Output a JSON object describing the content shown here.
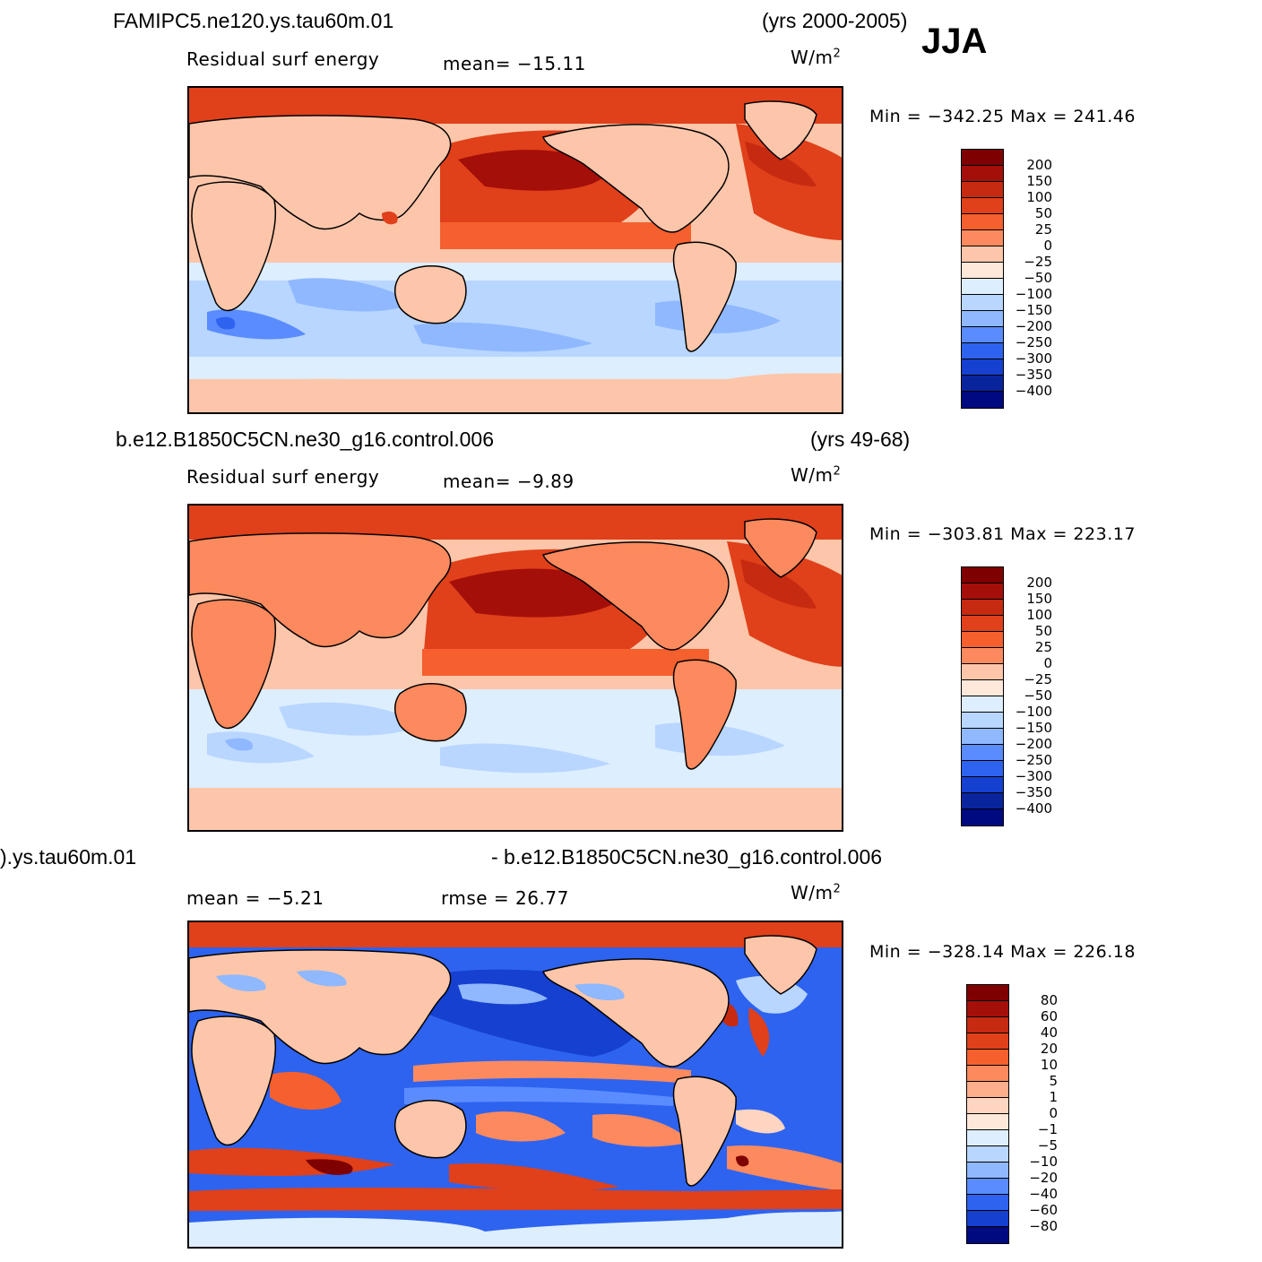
{
  "season": "JJA",
  "panels": [
    {
      "case": "FAMIPC5.ne120.ys.tau60m.01",
      "years": "(yrs 2000-2005)",
      "variable": "Residual surf energy",
      "stat1": "mean=  −15.11",
      "stat2": "",
      "units": "W/m",
      "units_exp": "2",
      "minmax": "Min  =  −342.25  Max  =  241.46",
      "colorbar": {
        "labels": [
          "200",
          "150",
          "100",
          "50",
          "25",
          "0",
          "−25",
          "−50",
          "−100",
          "−150",
          "−200",
          "−250",
          "−300",
          "−350",
          "−400"
        ],
        "colors": [
          "#7f0000",
          "#a50f0a",
          "#c62a10",
          "#e0401a",
          "#f5602e",
          "#fc8a5e",
          "#fdc6aa",
          "#fee8d9",
          "#ddeeff",
          "#b8d6ff",
          "#8fb8ff",
          "#5a8cff",
          "#2e63f0",
          "#1540d0",
          "#0a249e",
          "#000a80"
        ]
      }
    },
    {
      "case": "b.e12.B1850C5CN.ne30_g16.control.006",
      "years": "(yrs 49-68)",
      "variable": "Residual surf energy",
      "stat1": "mean=   −9.89",
      "stat2": "",
      "units": "W/m",
      "units_exp": "2",
      "minmax": "Min  =  −303.81  Max  =  223.17",
      "colorbar": {
        "labels": [
          "200",
          "150",
          "100",
          "50",
          "25",
          "0",
          "−25",
          "−50",
          "−100",
          "−150",
          "−200",
          "−250",
          "−300",
          "−350",
          "−400"
        ],
        "colors": [
          "#7f0000",
          "#a50f0a",
          "#c62a10",
          "#e0401a",
          "#f5602e",
          "#fc8a5e",
          "#fdc6aa",
          "#fee8d9",
          "#ddeeff",
          "#b8d6ff",
          "#8fb8ff",
          "#5a8cff",
          "#2e63f0",
          "#1540d0",
          "#0a249e",
          "#000a80"
        ]
      }
    },
    {
      "case": ").ys.tau60m.01",
      "years": "- b.e12.B1850C5CN.ne30_g16.control.006",
      "variable": "mean =   −5.21",
      "stat1": "rmse =   26.77",
      "stat2": "",
      "units": "W/m",
      "units_exp": "2",
      "minmax": "Min  =  −328.14  Max  =  226.18",
      "colorbar": {
        "labels": [
          "80",
          "60",
          "40",
          "20",
          "10",
          "5",
          "1",
          "0",
          "−1",
          "−5",
          "−10",
          "−20",
          "−40",
          "−60",
          "−80"
        ],
        "colors": [
          "#7f0000",
          "#a50f0a",
          "#c62a10",
          "#e0401a",
          "#f5602e",
          "#fc8a5e",
          "#fdae8a",
          "#fdd5c0",
          "#fee8d9",
          "#ddeeff",
          "#b8d6ff",
          "#8fb8ff",
          "#5a8cff",
          "#2e63f0",
          "#1540d0",
          "#000a80"
        ]
      }
    }
  ]
}
